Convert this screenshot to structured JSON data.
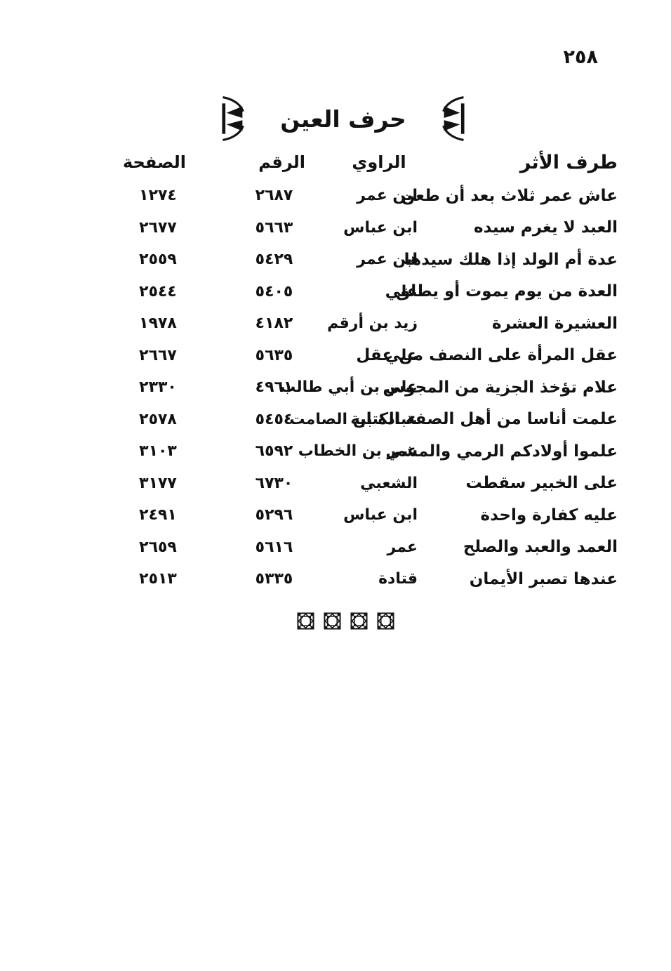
{
  "page": {
    "number": "٢٥٨",
    "section_title": "حرف العين"
  },
  "table": {
    "headers": {
      "entry": "طرف الأثر",
      "narrator": "الراوي",
      "number": "الرقم",
      "page": "الصفحة"
    },
    "rows": [
      {
        "entry": "عاش عمر ثلاث بعد أن طعن",
        "narrator": "ابن عمر",
        "number": "٢٦٨٧",
        "page": "١٢٧٤"
      },
      {
        "entry": "العبد لا يغرم سيده",
        "narrator": "ابن عباس",
        "number": "٥٦٦٣",
        "page": "٢٦٧٧"
      },
      {
        "entry": "عدة أم الولد إذا هلك سيدها",
        "narrator": "ابن عمر",
        "number": "٥٤٢٩",
        "page": "٢٥٥٩"
      },
      {
        "entry": "العدة من يوم يموت أو يطلق",
        "narrator": "علي",
        "number": "٥٤٠٥",
        "page": "٢٥٤٤"
      },
      {
        "entry": "العشيرة العشرة",
        "narrator": "زيد بن أرقم",
        "number": "٤١٨٢",
        "page": "١٩٧٨"
      },
      {
        "entry": "عقل المرأة على النصف من عقل",
        "narrator": "علي",
        "number": "٥٦٣٥",
        "page": "٢٦٦٧"
      },
      {
        "entry": "علام تؤخذ الجزية من المجوس",
        "narrator": "علي بن أبي طالب",
        "number": "٤٩٦١",
        "page": "٢٣٣٠"
      },
      {
        "entry": "علمت أناسا من أهل الصفة الكتابة",
        "narrator": "عبادة بن الصامت",
        "number": "٥٤٥٤",
        "page": "٢٥٧٨"
      },
      {
        "entry": "علموا أولادكم الرمي والمشي",
        "narrator": "عمر بن الخطاب",
        "number": "٦٥٩٢",
        "page": "٣١٠٣"
      },
      {
        "entry": "على الخبير سقطت",
        "narrator": "الشعبي",
        "number": "٦٧٣٠",
        "page": "٣١٧٧"
      },
      {
        "entry": "عليه كفارة واحدة",
        "narrator": "ابن عباس",
        "number": "٥٢٩٦",
        "page": "٢٤٩١"
      },
      {
        "entry": "العمد والعبد والصلح",
        "narrator": "عمر",
        "number": "٥٦١٦",
        "page": "٢٦٥٩"
      },
      {
        "entry": "عندها تصبر الأيمان",
        "narrator": "قتادة",
        "number": "٥٣٣٥",
        "page": "٢٥١٣"
      }
    ]
  },
  "ornaments": {
    "title_bracket_right": "ornamental-bracket",
    "title_bracket_left": "ornamental-bracket",
    "footer_rosette_count": 4
  },
  "colors": {
    "ink": "#121212",
    "paper": "#ffffff"
  }
}
